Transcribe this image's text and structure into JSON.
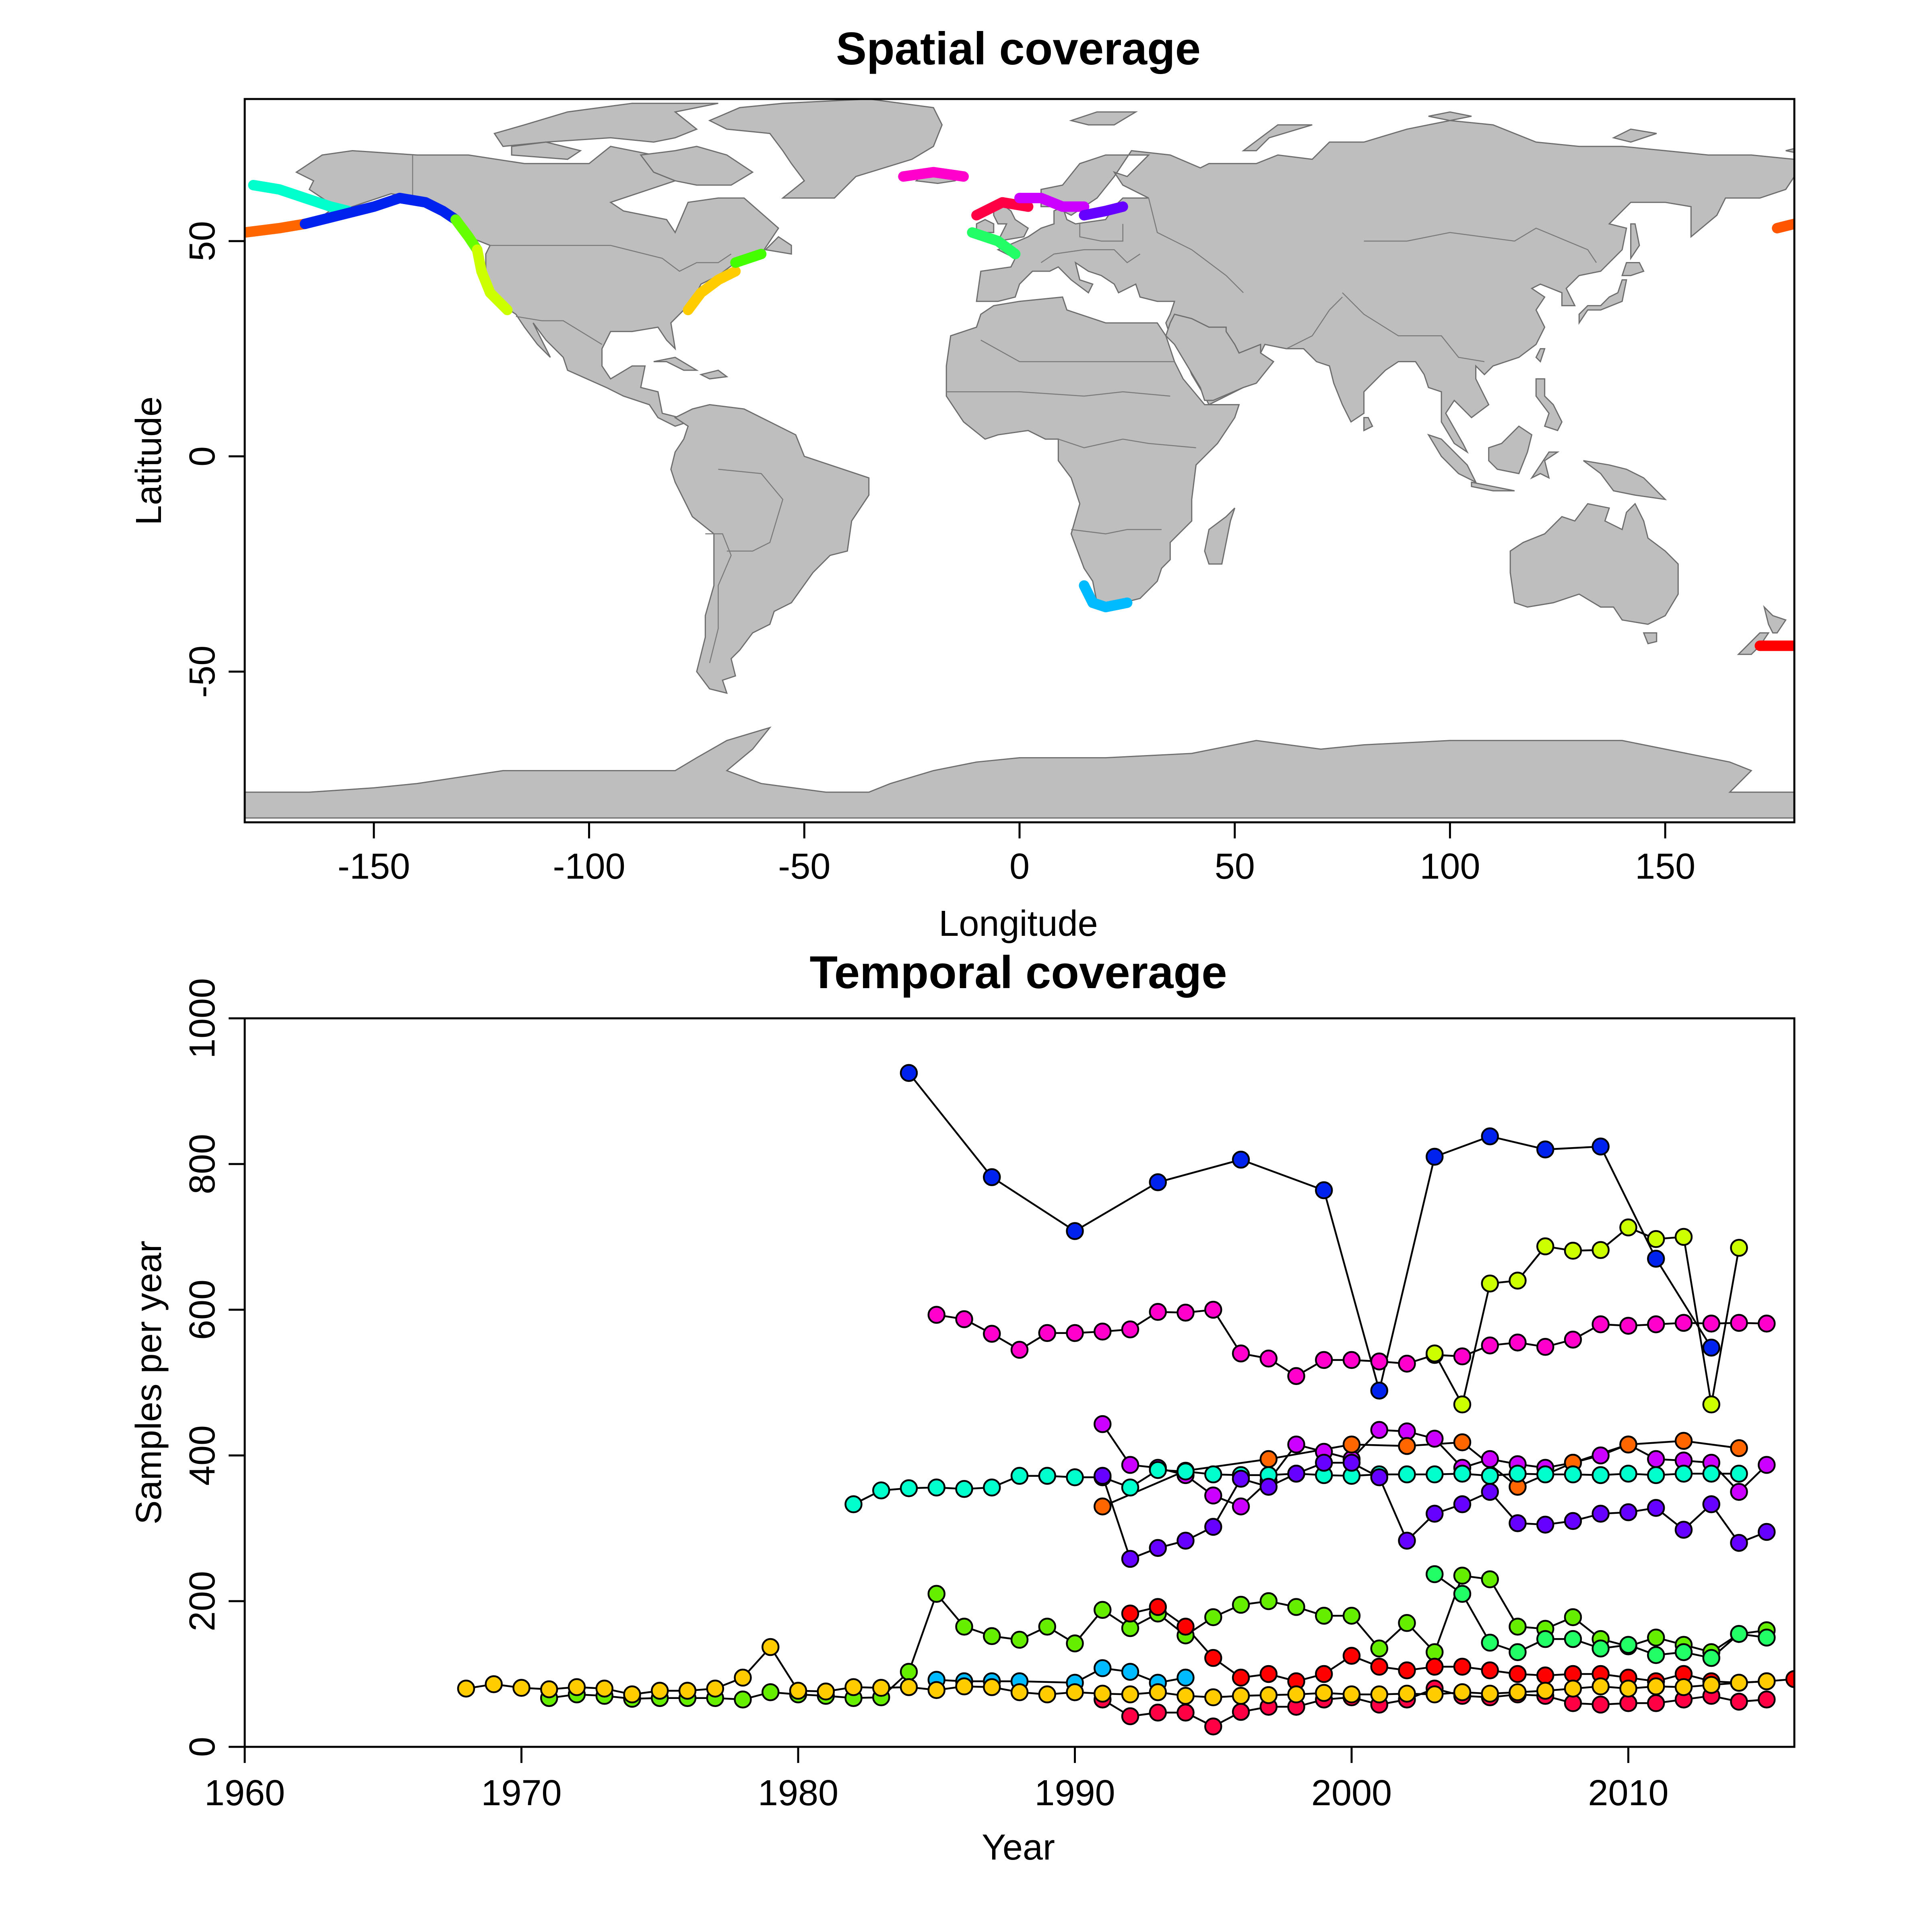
{
  "spatial": {
    "title": "Spatial coverage",
    "xlabel": "Longitude",
    "ylabel": "Latitude",
    "xticks": [
      -150,
      -100,
      -50,
      0,
      50,
      100,
      150
    ],
    "yticks": [
      -50,
      0,
      50
    ],
    "xlim": [
      -180,
      180
    ],
    "ylim": [
      -85,
      83
    ],
    "land_color": "#bebebe",
    "regions": [
      {
        "color": "#00ffcc",
        "path": [
          [
            -178,
            63
          ],
          [
            -172,
            62
          ],
          [
            -166,
            60
          ],
          [
            -160,
            58
          ],
          [
            -156,
            57
          ]
        ]
      },
      {
        "color": "#ff6600",
        "path": [
          [
            -180,
            52
          ],
          [
            -172,
            53
          ],
          [
            -166,
            54
          ]
        ]
      },
      {
        "color": "#0022ee",
        "path": [
          [
            -166,
            54
          ],
          [
            -158,
            56
          ],
          [
            -150,
            58
          ],
          [
            -144,
            60
          ],
          [
            -138,
            59
          ],
          [
            -134,
            57
          ],
          [
            -131,
            55
          ]
        ]
      },
      {
        "color": "#66ff00",
        "path": [
          [
            -131,
            55
          ],
          [
            -128,
            51
          ],
          [
            -126,
            48
          ]
        ]
      },
      {
        "color": "#ccff00",
        "path": [
          [
            -126,
            48
          ],
          [
            -125,
            43
          ],
          [
            -123,
            38
          ],
          [
            -119,
            34
          ]
        ]
      },
      {
        "color": "#ffcc00",
        "path": [
          [
            -77,
            34
          ],
          [
            -74,
            38
          ],
          [
            -70,
            41
          ],
          [
            -66,
            43
          ]
        ]
      },
      {
        "color": "#44ff00",
        "path": [
          [
            -66,
            45
          ],
          [
            -60,
            47
          ]
        ]
      },
      {
        "color": "#ff00cc",
        "path": [
          [
            -27,
            65
          ],
          [
            -20,
            66
          ],
          [
            -13,
            65
          ]
        ]
      },
      {
        "color": "#ff0044",
        "path": [
          [
            -10,
            56
          ],
          [
            -4,
            59
          ],
          [
            2,
            58
          ]
        ]
      },
      {
        "color": "#22ff66",
        "path": [
          [
            -11,
            52
          ],
          [
            -5,
            50
          ],
          [
            -1,
            47
          ]
        ]
      },
      {
        "color": "#cc00ff",
        "path": [
          [
            0,
            60
          ],
          [
            5,
            60
          ],
          [
            10,
            58
          ],
          [
            15,
            58
          ]
        ]
      },
      {
        "color": "#6600ff",
        "path": [
          [
            15,
            56
          ],
          [
            20,
            57
          ],
          [
            24,
            58
          ]
        ]
      },
      {
        "color": "#00bbff",
        "path": [
          [
            15,
            -30
          ],
          [
            17,
            -34
          ],
          [
            20,
            -35
          ],
          [
            25,
            -34
          ]
        ]
      },
      {
        "color": "#ff0000",
        "path": [
          [
            172,
            -44
          ],
          [
            180,
            -44
          ]
        ]
      },
      {
        "color": "#ff5500",
        "path": [
          [
            176,
            53
          ],
          [
            180,
            54
          ]
        ]
      }
    ]
  },
  "chart_data": {
    "type": "line",
    "title": "Temporal coverage",
    "xlabel": "Year",
    "ylabel": "Samples per year",
    "xlim": [
      1960,
      2016
    ],
    "ylim": [
      0,
      1000
    ],
    "xticks": [
      1960,
      1970,
      1980,
      1990,
      2000,
      2010
    ],
    "yticks": [
      0,
      200,
      400,
      600,
      800,
      1000
    ],
    "series": [
      {
        "color": "#0022ee",
        "x": [
          1984,
          1987,
          1990,
          1993,
          1996,
          1999,
          2001,
          2003,
          2005,
          2007,
          2009,
          2011,
          2013
        ],
        "y": [
          925,
          782,
          708,
          775,
          806,
          764,
          489,
          810,
          838,
          820,
          824,
          670,
          548
        ]
      },
      {
        "color": "#ff00cc",
        "x": [
          1985,
          1986,
          1987,
          1988,
          1989,
          1990,
          1991,
          1992,
          1993,
          1994,
          1995,
          1996,
          1997,
          1998,
          1999,
          2000,
          2001,
          2002,
          2003,
          2004,
          2005,
          2006,
          2007,
          2008,
          2009,
          2010,
          2011,
          2012,
          2013,
          2014,
          2015
        ],
        "y": [
          593,
          587,
          567,
          545,
          568,
          568,
          570,
          573,
          597,
          596,
          600,
          540,
          533,
          509,
          531,
          531,
          529,
          526,
          538,
          536,
          551,
          555,
          549,
          559,
          580,
          578,
          580,
          582,
          581,
          582,
          581
        ]
      },
      {
        "color": "#ccff00",
        "x": [
          2003,
          2004,
          2005,
          2006,
          2007,
          2008,
          2009,
          2010,
          2011,
          2012,
          2013,
          2014
        ],
        "y": [
          540,
          470,
          636,
          640,
          687,
          681,
          682,
          713,
          697,
          700,
          470,
          685
        ]
      },
      {
        "color": "#cc00ff",
        "x": [
          1991,
          1992,
          1993,
          1994,
          1995,
          1996,
          1997,
          1998,
          1999,
          2000,
          2001,
          2002,
          2003,
          2004,
          2005,
          2006,
          2007,
          2008,
          2009,
          2010,
          2011,
          2012,
          2013,
          2014,
          2015
        ],
        "y": [
          443,
          387,
          383,
          373,
          345,
          330,
          365,
          415,
          405,
          395,
          435,
          433,
          423,
          383,
          395,
          388,
          383,
          390,
          400,
          415,
          395,
          393,
          390,
          350,
          387
        ]
      },
      {
        "color": "#ff6600",
        "x": [
          1991,
          1994,
          1997,
          2000,
          2002,
          2004,
          2006,
          2008,
          2010,
          2012,
          2014
        ],
        "y": [
          330,
          379,
          395,
          415,
          413,
          418,
          357,
          390,
          415,
          420,
          410
        ]
      },
      {
        "color": "#00ffcc",
        "x": [
          1982,
          1983,
          1984,
          1985,
          1986,
          1987,
          1988,
          1989,
          1990,
          1991,
          1992,
          1993,
          1994,
          1995,
          1996,
          1997,
          1998,
          1999,
          2000,
          2001,
          2002,
          2003,
          2004,
          2005,
          2006,
          2007,
          2008,
          2009,
          2010,
          2011,
          2012,
          2013,
          2014
        ],
        "y": [
          333,
          352,
          355,
          356,
          354,
          356,
          372,
          372,
          370,
          370,
          356,
          380,
          378,
          374,
          373,
          373,
          375,
          373,
          372,
          374,
          374,
          374,
          375,
          372,
          375,
          374,
          374,
          373,
          375,
          373,
          375,
          375,
          375
        ]
      },
      {
        "color": "#6600ff",
        "x": [
          1991,
          1992,
          1993,
          1994,
          1995,
          1996,
          1997,
          1998,
          1999,
          2000,
          2001,
          2002,
          2003,
          2004,
          2005,
          2006,
          2007,
          2008,
          2009,
          2010,
          2011,
          2012,
          2013,
          2014,
          2015
        ],
        "y": [
          372,
          258,
          273,
          283,
          302,
          368,
          357,
          375,
          390,
          390,
          370,
          283,
          320,
          333,
          350,
          307,
          305,
          310,
          320,
          322,
          328,
          298,
          333,
          280,
          295
        ]
      },
      {
        "color": "#66ee00",
        "x": [
          1971,
          1972,
          1973,
          1974,
          1975,
          1976,
          1977,
          1978,
          1979,
          1980,
          1981,
          1982,
          1983,
          1984,
          1985,
          1986,
          1987,
          1988,
          1989,
          1990,
          1991,
          1992,
          1993,
          1994,
          1995,
          1996,
          1997,
          1998,
          1999,
          2000,
          2001,
          2002,
          2003,
          2004,
          2005,
          2006,
          2007,
          2008,
          2009,
          2010,
          2011,
          2012,
          2013,
          2014,
          2015
        ],
        "y": [
          67,
          72,
          70,
          66,
          67,
          67,
          67,
          65,
          75,
          72,
          70,
          67,
          68,
          103,
          210,
          165,
          152,
          147,
          165,
          142,
          188,
          163,
          183,
          153,
          178,
          195,
          200,
          192,
          180,
          180,
          135,
          170,
          130,
          235,
          230,
          165,
          162,
          178,
          148,
          138,
          150,
          140,
          130,
          155,
          160
        ]
      },
      {
        "color": "#22ff66",
        "x": [
          2003,
          2004,
          2005,
          2006,
          2007,
          2008,
          2009,
          2010,
          2011,
          2012,
          2013,
          2014,
          2015
        ],
        "y": [
          237,
          210,
          143,
          130,
          148,
          148,
          135,
          140,
          126,
          130,
          122,
          155,
          150
        ]
      },
      {
        "color": "#00bbff",
        "x": [
          1985,
          1986,
          1987,
          1988,
          1990,
          1991,
          1992,
          1993,
          1994
        ],
        "y": [
          92,
          90,
          90,
          90,
          88,
          108,
          103,
          88,
          95
        ]
      },
      {
        "color": "#ff0000",
        "x": [
          1992,
          1993,
          1994,
          1995,
          1996,
          1997,
          1998,
          1999,
          2000,
          2001,
          2002,
          2003,
          2004,
          2005,
          2006,
          2007,
          2008,
          2009,
          2010,
          2011,
          2012,
          2013,
          2014,
          2015,
          2016
        ],
        "y": [
          183,
          192,
          165,
          122,
          95,
          100,
          90,
          100,
          125,
          110,
          105,
          110,
          110,
          105,
          100,
          98,
          100,
          100,
          95,
          90,
          100,
          90,
          88,
          90,
          93
        ]
      },
      {
        "color": "#ff0044",
        "x": [
          1991,
          1992,
          1993,
          1994,
          1995,
          1996,
          1997,
          1998,
          1999,
          2000,
          2001,
          2002,
          2003,
          2004,
          2005,
          2006,
          2007,
          2008,
          2009,
          2010,
          2011,
          2012,
          2013,
          2014,
          2015
        ],
        "y": [
          65,
          42,
          47,
          47,
          28,
          48,
          55,
          55,
          65,
          68,
          58,
          65,
          80,
          70,
          68,
          72,
          70,
          60,
          58,
          60,
          60,
          65,
          70,
          62,
          65
        ]
      },
      {
        "color": "#ffcc00",
        "x": [
          1968,
          1969,
          1970,
          1971,
          1972,
          1973,
          1974,
          1975,
          1976,
          1977,
          1978,
          1979,
          1980,
          1981,
          1982,
          1983,
          1984,
          1985,
          1986,
          1987,
          1988,
          1989,
          1990,
          1991,
          1992,
          1993,
          1994,
          1995,
          1996,
          1997,
          1998,
          1999,
          2000,
          2001,
          2002,
          2003,
          2004,
          2005,
          2006,
          2007,
          2008,
          2009,
          2010,
          2011,
          2012,
          2013,
          2014,
          2015
        ],
        "y": [
          80,
          86,
          81,
          79,
          82,
          80,
          72,
          77,
          77,
          80,
          95,
          137,
          77,
          76,
          82,
          81,
          82,
          78,
          83,
          82,
          75,
          72,
          75,
          73,
          72,
          75,
          70,
          68,
          70,
          71,
          72,
          74,
          72,
          72,
          73,
          72,
          75,
          73,
          75,
          77,
          80,
          83,
          80,
          83,
          82,
          85,
          88,
          90
        ]
      }
    ]
  }
}
